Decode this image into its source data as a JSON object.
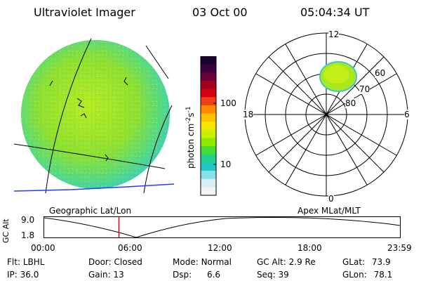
{
  "header": {
    "title": "Ultraviolet Imager",
    "date": "03 Oct 00",
    "time": "05:04:34 UT"
  },
  "colorbar": {
    "unit_label": "photon cm",
    "unit_sup": "-2",
    "unit_s": "s",
    "unit_sup2": "-1",
    "ticks": [
      "100",
      "10"
    ],
    "colors": [
      "#1b0033",
      "#3a0040",
      "#6a0033",
      "#a40020",
      "#d40014",
      "#f0401a",
      "#ff8a00",
      "#ffc000",
      "#f4e600",
      "#c8f000",
      "#8ee800",
      "#44dd33",
      "#22d090",
      "#22c8c8",
      "#88e0e8",
      "#d8eef4",
      "#f4f4f4"
    ]
  },
  "left_panel": {
    "caption": "Geographic Lat/Lon"
  },
  "right_panel": {
    "caption": "Apex MLat/MLT",
    "mlt_labels": {
      "top": "12",
      "left": "18",
      "right": "6",
      "bottom": "0"
    },
    "lat_labels": [
      "60",
      "70",
      "80"
    ]
  },
  "timeline": {
    "ylabel": "GC Alt",
    "yticks": [
      "9.0",
      "1.8"
    ],
    "xticks": [
      "00:00",
      "06:00",
      "12:00",
      "18:00",
      "23:59"
    ],
    "marker_time_hours": 5.08
  },
  "info": {
    "flt_label": "Flt:",
    "flt_value": "LBHL",
    "door_label": "Door:",
    "door_value": "Closed",
    "mode_label": "Mode:",
    "mode_value": "Normal",
    "gcalt_label": "GC Alt:",
    "gcalt_value": "2.9 Re",
    "glat_label": "GLat:",
    "glat_value": "73.9",
    "ip_label": "IP:",
    "ip_value": "36.0",
    "gain_label": "Gain:",
    "gain_value": "13",
    "dsp_label": "Dsp:",
    "dsp_value": "6.6",
    "seq_label": "Seq:",
    "seq_value": "39",
    "glon_label": "GLon:",
    "glon_value": "78.1"
  }
}
